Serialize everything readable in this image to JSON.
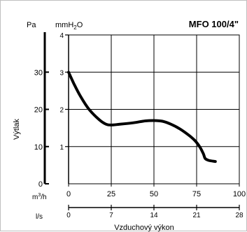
{
  "chart_data": {
    "type": "line",
    "title": "MFO 100/4\"",
    "y_label": "Výtlak",
    "y_unit_pa": "Pa",
    "y_unit_mmh2o_prefix": "mmH",
    "y_unit_mmh2o_sub": "2",
    "y_unit_mmh2o_suffix": "O",
    "x_unit_m3h_prefix": "m",
    "x_unit_m3h_sup": "3",
    "x_unit_m3h_suffix": "/h",
    "x_unit_ls": "l/s",
    "x_label": "Vzduchový výkon",
    "x_ticks_m3h": [
      "0",
      "25",
      "50",
      "75",
      "100"
    ],
    "x_ticks_ls": [
      "0",
      "7",
      "14",
      "21",
      "28"
    ],
    "y_ticks_mmh2o": [
      "1",
      "2",
      "3",
      "4"
    ],
    "y_ticks_pa": [
      "0",
      "10",
      "20",
      "30"
    ],
    "xlim_m3h": [
      0,
      100
    ],
    "ylim_mmh2o": [
      0,
      4
    ],
    "xlim_ls": [
      0,
      28
    ],
    "ylim_pa": [
      0,
      40
    ],
    "grid": true,
    "series": [
      {
        "x": [
          0,
          3,
          7,
          12,
          18,
          22,
          25,
          30,
          38,
          45,
          50,
          55,
          60,
          65,
          70,
          74,
          77,
          79,
          80,
          82,
          86
        ],
        "y": [
          3.0,
          2.7,
          2.35,
          2.0,
          1.72,
          1.6,
          1.58,
          1.6,
          1.64,
          1.69,
          1.7,
          1.68,
          1.6,
          1.48,
          1.32,
          1.16,
          0.98,
          0.8,
          0.68,
          0.63,
          0.6
        ]
      }
    ]
  }
}
